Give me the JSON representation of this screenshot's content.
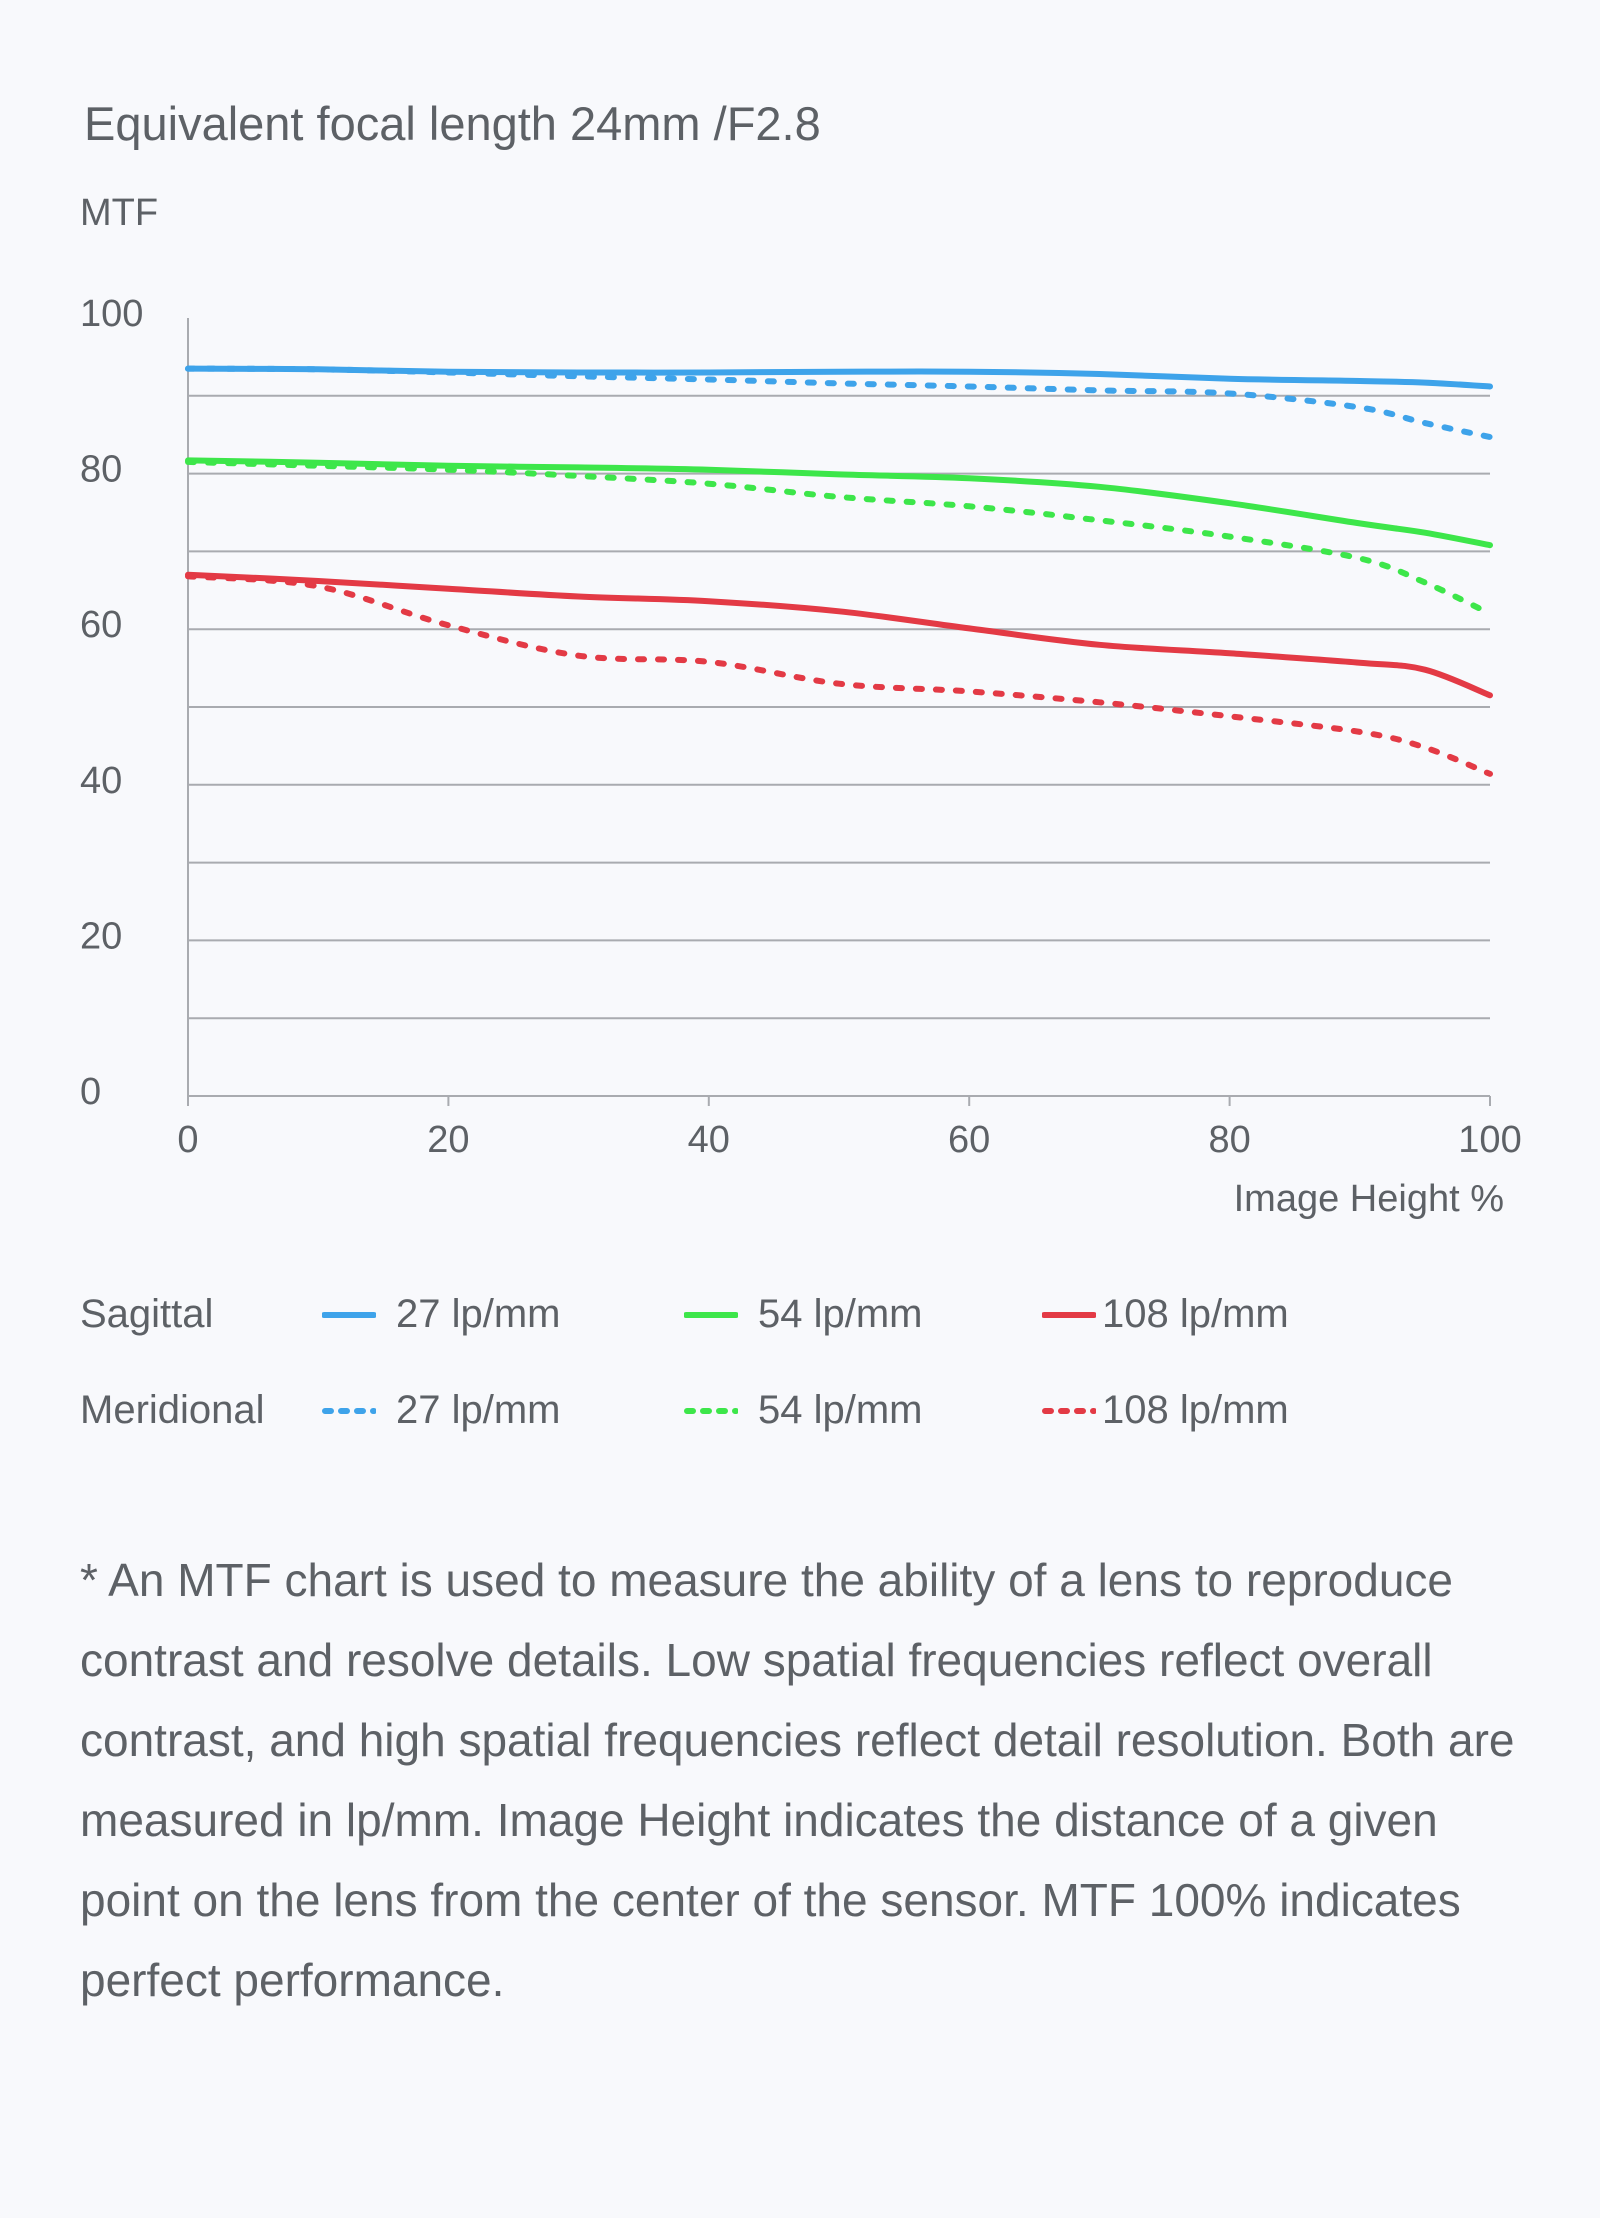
{
  "chart_data": {
    "type": "line",
    "title": "Equivalent focal length 24mm /F2.8",
    "ylabel": "MTF",
    "xlabel": "Image Height %",
    "xlim": [
      0,
      100
    ],
    "ylim": [
      0,
      100
    ],
    "xticks": [
      "0",
      "20",
      "40",
      "60",
      "80",
      "100"
    ],
    "yticks": [
      "0",
      "20",
      "40",
      "60",
      "80",
      "100"
    ],
    "grid": true,
    "x": [
      0,
      10,
      20,
      30,
      40,
      50,
      60,
      70,
      80,
      90,
      95,
      100
    ],
    "series": [
      {
        "name": "Sagittal 27 lp/mm",
        "group": "Sagittal",
        "freq": "27 lp/mm",
        "color": "#3ea3ea",
        "style": "solid",
        "values": [
          93.5,
          93.4,
          93.1,
          93.0,
          93.0,
          93.1,
          93.1,
          92.8,
          92.2,
          91.9,
          91.7,
          91.2
        ]
      },
      {
        "name": "Meridional 27 lp/mm",
        "group": "Meridional",
        "freq": "27 lp/mm",
        "color": "#3ea3ea",
        "style": "dotted",
        "values": [
          93.5,
          93.4,
          93.0,
          92.5,
          92.1,
          91.6,
          91.2,
          90.7,
          90.3,
          88.5,
          86.5,
          84.7
        ]
      },
      {
        "name": "Sagittal 54 lp/mm",
        "group": "Sagittal",
        "freq": "54 lp/mm",
        "color": "#3de64a",
        "style": "solid",
        "values": [
          81.7,
          81.4,
          81.0,
          80.8,
          80.5,
          79.9,
          79.4,
          78.3,
          76.2,
          73.6,
          72.4,
          70.8
        ]
      },
      {
        "name": "Meridional 54 lp/mm",
        "group": "Meridional",
        "freq": "54 lp/mm",
        "color": "#3de64a",
        "style": "dotted",
        "values": [
          81.5,
          81.0,
          80.5,
          79.7,
          78.7,
          77.0,
          75.8,
          74.0,
          71.9,
          69.1,
          66.0,
          62.0
        ]
      },
      {
        "name": "Sagittal 108 lp/mm",
        "group": "Sagittal",
        "freq": "108 lp/mm",
        "color": "#e33a45",
        "style": "solid",
        "values": [
          67.0,
          66.2,
          65.2,
          64.2,
          63.6,
          62.3,
          60.1,
          58.0,
          56.9,
          55.7,
          54.8,
          51.5
        ]
      },
      {
        "name": "Meridional 108 lp/mm",
        "group": "Meridional",
        "freq": "108 lp/mm",
        "color": "#e33a45",
        "style": "dotted",
        "values": [
          66.8,
          65.5,
          60.5,
          56.6,
          55.8,
          53.0,
          52.0,
          50.6,
          48.8,
          46.8,
          44.8,
          41.4
        ]
      }
    ]
  },
  "legend": {
    "sagittal_label": "Sagittal",
    "meridional_label": "Meridional",
    "items": [
      "27 lp/mm",
      "54 lp/mm",
      "108 lp/mm"
    ]
  },
  "note": "* An MTF chart is used to measure the ability of a lens to reproduce contrast and resolve details. Low spatial frequencies reflect overall contrast, and high spatial frequencies reflect detail resolution. Both are measured in lp/mm. Image Height indicates the distance of a given point on the lens from the center of the sensor. MTF 100% indicates perfect performance."
}
